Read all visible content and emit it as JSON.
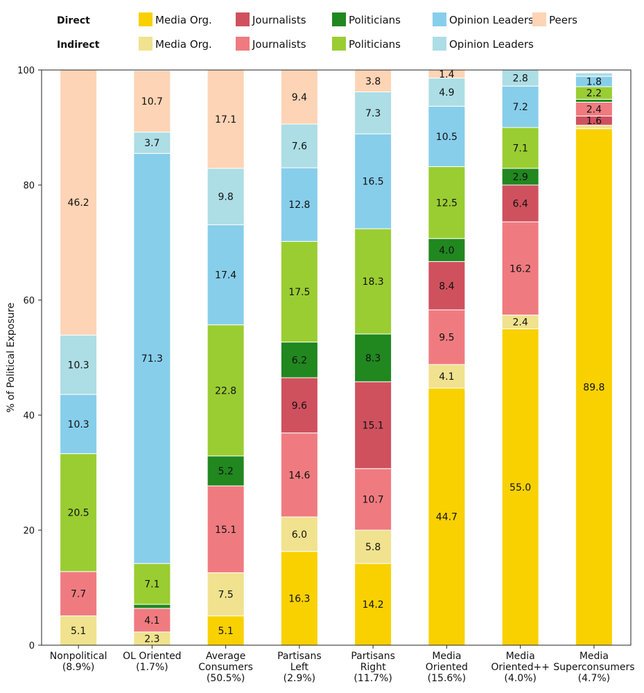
{
  "chart_data": {
    "type": "bar",
    "stacked": true,
    "ylabel": "% of Political Exposure",
    "ylim": [
      0,
      100
    ],
    "yticks": [
      "0",
      "20",
      "40",
      "60",
      "80",
      "100"
    ],
    "legend": {
      "direct_title": "Direct",
      "indirect_title": "Indirect",
      "placement": "top"
    },
    "categories": [
      [
        "Nonpolitical",
        "(8.9%)"
      ],
      [
        "OL Oriented",
        "(1.7%)"
      ],
      [
        "Average",
        "Consumers",
        "(50.5%)"
      ],
      [
        "Partisans",
        "Left",
        "(2.9%)"
      ],
      [
        "Partisans",
        "Right",
        "(11.7%)"
      ],
      [
        "Media",
        "Oriented",
        "(15.6%)"
      ],
      [
        "Media",
        "Oriented++",
        "(4.0%)"
      ],
      [
        "Media",
        "Superconsumers",
        "(4.7%)"
      ]
    ],
    "series": [
      {
        "name": "Media Org.",
        "group": "Direct",
        "color": "#f9d100",
        "legend_row": 0,
        "legend_col": 0,
        "values": [
          0,
          0,
          5.1,
          16.3,
          14.2,
          44.7,
          55.0,
          89.8
        ],
        "labels": [
          "",
          "",
          "5.1",
          "16.3",
          "14.2",
          "44.7",
          "55.0",
          "89.8"
        ]
      },
      {
        "name": "Media Org.",
        "group": "Indirect",
        "color": "#f0e28e",
        "legend_row": 1,
        "legend_col": 0,
        "values": [
          5.1,
          2.3,
          7.5,
          6.0,
          5.8,
          4.1,
          2.4,
          0.6
        ],
        "labels": [
          "5.1",
          "2.3",
          "7.5",
          "6.0",
          "5.8",
          "4.1",
          "2.4",
          ""
        ]
      },
      {
        "name": "Journalists",
        "group": "Indirect",
        "color": "#ef7b80",
        "legend_row": 1,
        "legend_col": 1,
        "values": [
          7.7,
          4.1,
          15.1,
          14.6,
          10.7,
          9.5,
          16.2,
          0
        ],
        "labels": [
          "7.7",
          "4.1",
          "15.1",
          "14.6",
          "10.7",
          "9.5",
          "16.2",
          ""
        ]
      },
      {
        "name": "Journalists",
        "group": "Direct",
        "color": "#cf515e",
        "legend_row": 0,
        "legend_col": 1,
        "values": [
          0,
          0,
          0,
          9.6,
          15.1,
          8.4,
          6.4,
          1.6
        ],
        "labels": [
          "",
          "",
          "",
          "9.6",
          "15.1",
          "8.4",
          "6.4",
          "1.6"
        ]
      },
      {
        "name": "Journalists",
        "group": "Indirect",
        "color": "#ef7b80",
        "legend_row": -1,
        "legend_col": 1,
        "values": [
          0,
          0,
          0,
          0,
          0,
          0,
          0,
          2.4
        ],
        "labels": [
          "",
          "",
          "",
          "",
          "",
          "",
          "",
          "2.4"
        ]
      },
      {
        "name": "Politicians",
        "group": "Direct",
        "color": "#21871f",
        "legend_row": 0,
        "legend_col": 2,
        "values": [
          0,
          0.7,
          5.2,
          6.2,
          8.3,
          4.0,
          2.9,
          0.5
        ],
        "labels": [
          "",
          "",
          "5.2",
          "6.2",
          "8.3",
          "4.0",
          "2.9",
          ""
        ]
      },
      {
        "name": "Politicians",
        "group": "Indirect",
        "color": "#9acd32",
        "legend_row": 1,
        "legend_col": 2,
        "values": [
          20.5,
          7.1,
          22.8,
          17.5,
          18.3,
          12.5,
          7.1,
          2.2
        ],
        "labels": [
          "20.5",
          "7.1",
          "22.8",
          "17.5",
          "18.3",
          "12.5",
          "7.1",
          "2.2"
        ]
      },
      {
        "name": "Opinion Leaders",
        "group": "Direct",
        "color": "#87ceeb",
        "legend_row": 0,
        "legend_col": 3,
        "values": [
          10.3,
          71.3,
          17.4,
          12.8,
          16.5,
          10.5,
          7.2,
          1.8
        ],
        "labels": [
          "10.3",
          "71.3",
          "17.4",
          "12.8",
          "16.5",
          "10.5",
          "7.2",
          "1.8"
        ]
      },
      {
        "name": "Opinion Leaders",
        "group": "Indirect",
        "color": "#addde5",
        "legend_row": 1,
        "legend_col": 3,
        "values": [
          10.3,
          3.7,
          9.8,
          7.6,
          7.3,
          4.9,
          2.8,
          0.6
        ],
        "labels": [
          "10.3",
          "3.7",
          "9.8",
          "7.6",
          "7.3",
          "4.9",
          "2.8",
          ""
        ]
      },
      {
        "name": "Peers",
        "group": "Direct",
        "color": "#fdd4b5",
        "legend_row": 0,
        "legend_col": 4,
        "values": [
          46.2,
          10.7,
          17.1,
          9.4,
          3.8,
          1.4,
          0,
          0
        ],
        "labels": [
          "46.2",
          "10.7",
          "17.1",
          "9.4",
          "3.8",
          "1.4",
          "",
          ""
        ]
      }
    ]
  }
}
